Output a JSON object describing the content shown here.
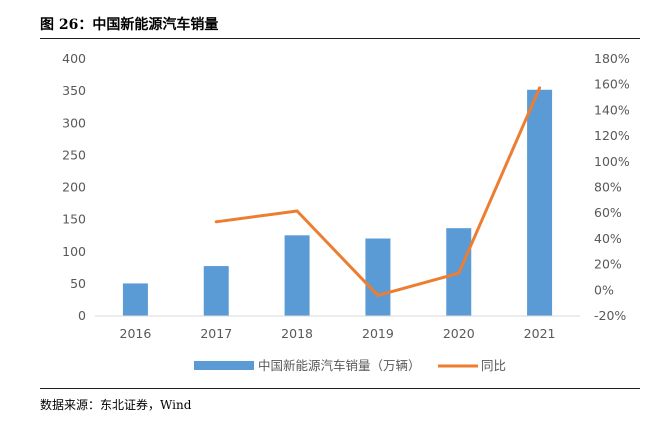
{
  "figure": {
    "title": "图 26：中国新能源汽车销量",
    "source": "数据来源：东北证券，Wind"
  },
  "colors": {
    "bar": "#5b9bd5",
    "line": "#ed7d31",
    "axis": "#d9d9d9",
    "tick_text": "#595959"
  },
  "chart_data": {
    "type": "bar",
    "categories": [
      "2016",
      "2017",
      "2018",
      "2019",
      "2020",
      "2021"
    ],
    "series": [
      {
        "name": "中国新能源汽车销量（万辆）",
        "type": "bar",
        "axis": "left",
        "values": [
          50.7,
          77.7,
          125.6,
          120.6,
          136.7,
          352.1
        ]
      },
      {
        "name": "同比",
        "type": "line",
        "axis": "right",
        "values": [
          null,
          53.3,
          61.7,
          -4.0,
          13.3,
          157.5
        ]
      }
    ],
    "left_axis": {
      "ylim": [
        0,
        400
      ],
      "ticks": [
        "0",
        "50",
        "100",
        "150",
        "200",
        "250",
        "300",
        "350",
        "400"
      ]
    },
    "right_axis": {
      "ylim": [
        -20,
        180
      ],
      "ticks": [
        "-20%",
        "0%",
        "20%",
        "40%",
        "60%",
        "80%",
        "100%",
        "120%",
        "140%",
        "160%",
        "180%"
      ]
    },
    "grid": false,
    "legend_position": "bottom"
  }
}
